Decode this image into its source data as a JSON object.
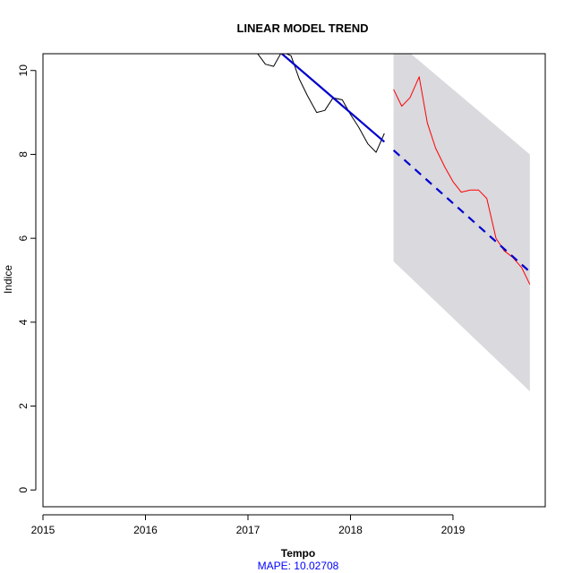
{
  "chart_data": {
    "type": "line",
    "title": "LINEAR MODEL TREND",
    "xlabel": "Tempo",
    "ylabel": "Indice",
    "xlim": [
      2015,
      2019.9
    ],
    "ylim": [
      -0.4,
      10.4
    ],
    "x_ticks": [
      2015,
      2016,
      2017,
      2018,
      2019
    ],
    "y_ticks": [
      0,
      2,
      4,
      6,
      8,
      10
    ],
    "grid": false,
    "legend": "none",
    "footnote": "MAPE:  10.02708",
    "colors": {
      "actual": "#000000",
      "fitted_trend": "#0000cd",
      "forecast": "#0000cd",
      "test_actual": "#ff0000",
      "interval": "#d9d9de",
      "footnote": "#0000ff"
    },
    "series": [
      {
        "kind": "actual",
        "x": [
          2017.0,
          2017.08,
          2017.17,
          2017.25,
          2017.33,
          2017.42,
          2017.5,
          2017.58,
          2017.67,
          2017.75,
          2017.83,
          2017.92,
          2018.0,
          2018.08,
          2018.17,
          2018.25,
          2018.33
        ],
        "values": [
          10.5,
          10.45,
          10.15,
          10.1,
          10.45,
          10.35,
          9.8,
          9.4,
          9.0,
          9.05,
          9.35,
          9.3,
          8.95,
          8.65,
          8.25,
          8.05,
          8.5
        ]
      },
      {
        "kind": "fitted_trend",
        "x": [
          2017.33,
          2018.33
        ],
        "values": [
          10.4,
          8.3
        ]
      },
      {
        "kind": "forecast",
        "x": [
          2018.42,
          2019.75
        ],
        "values": [
          8.1,
          5.2
        ]
      },
      {
        "kind": "test_actual",
        "x": [
          2018.42,
          2018.5,
          2018.58,
          2018.67,
          2018.75,
          2018.83,
          2018.92,
          2019.0,
          2019.08,
          2019.17,
          2019.25,
          2019.33,
          2019.42,
          2019.5,
          2019.58,
          2019.67,
          2019.75
        ],
        "values": [
          9.55,
          9.15,
          9.35,
          9.85,
          8.75,
          8.15,
          7.7,
          7.35,
          7.1,
          7.15,
          7.15,
          6.95,
          6.0,
          5.7,
          5.55,
          5.3,
          4.9
        ]
      }
    ],
    "interval": {
      "x": [
        2018.42,
        2019.75
      ],
      "upper": [
        10.75,
        8.0
      ],
      "lower": [
        5.45,
        2.35
      ]
    }
  }
}
